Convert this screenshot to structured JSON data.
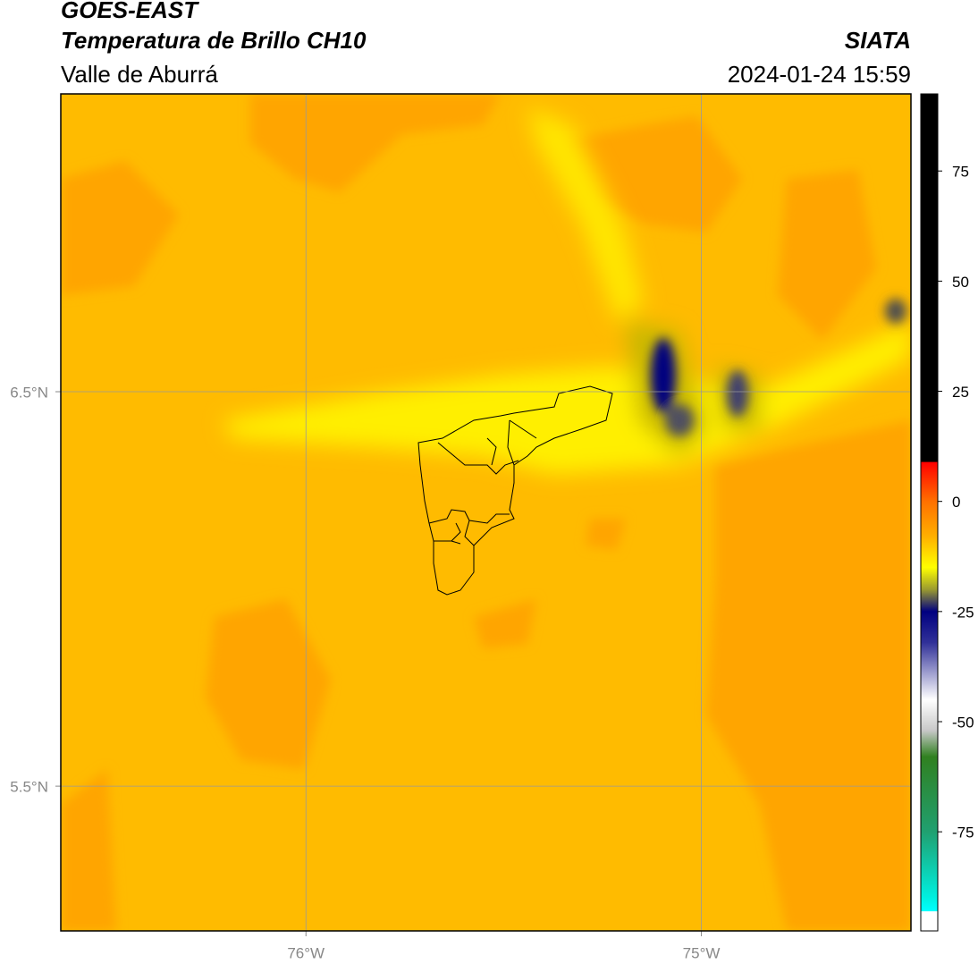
{
  "chart_data": {
    "type": "map",
    "title": "GOES-EAST",
    "subtitle": "Temperatura de Brillo CH10",
    "region": "Valle de Aburrá",
    "source": "SIATA",
    "timestamp": "2024-01-24 15:59",
    "xlim": [
      -76.62,
      -74.47
    ],
    "ylim": [
      5.133,
      7.255
    ],
    "xticks": [
      {
        "value": -76,
        "label": "76°W"
      },
      {
        "value": -75,
        "label": "75°W"
      }
    ],
    "yticks": [
      {
        "value": 6.5,
        "label": "6.5°N"
      },
      {
        "value": 5.5,
        "label": "5.5°N"
      }
    ],
    "grid": true,
    "colorbar": {
      "lim": [
        -97.5,
        92.5
      ],
      "ticks": [
        75,
        50,
        25,
        0,
        -25,
        -50,
        -75
      ],
      "stops": [
        {
          "value": 92.5,
          "color": "#000000"
        },
        {
          "value": 9,
          "color": "#000000"
        },
        {
          "value": 8.9,
          "color": "#ff0000"
        },
        {
          "value": 0,
          "color": "#ff7000"
        },
        {
          "value": -8,
          "color": "#ffb000"
        },
        {
          "value": -15,
          "color": "#ffff00"
        },
        {
          "value": -20,
          "color": "#9a9a30"
        },
        {
          "value": -25,
          "color": "#000080"
        },
        {
          "value": -32,
          "color": "#303098"
        },
        {
          "value": -45,
          "color": "#ffffff"
        },
        {
          "value": -52,
          "color": "#c8c8c8"
        },
        {
          "value": -58,
          "color": "#308020"
        },
        {
          "value": -75,
          "color": "#20a070"
        },
        {
          "value": -90,
          "color": "#00f0e0"
        },
        {
          "value": -93,
          "color": "#00ffff"
        },
        {
          "value": -93.1,
          "color": "#ffffff"
        },
        {
          "value": -97.5,
          "color": "#ffffff"
        }
      ]
    }
  }
}
